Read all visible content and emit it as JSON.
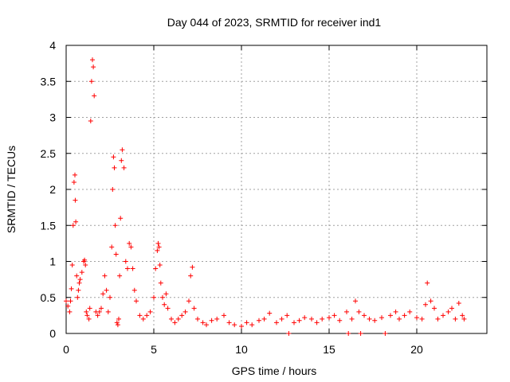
{
  "chart_data": {
    "type": "scatter",
    "title": "Day 044 of 2023, SRMTID for receiver ind1",
    "xlabel": "GPS time / hours",
    "ylabel": "SRMTID / TECUs",
    "xlim": [
      0,
      24
    ],
    "ylim": [
      0,
      4
    ],
    "xticks": [
      0,
      5,
      10,
      15,
      20
    ],
    "xtick_labels": [
      "0",
      "5",
      "10",
      "15",
      "20"
    ],
    "yticks": [
      0,
      0.5,
      1,
      1.5,
      2,
      2.5,
      3,
      3.5,
      4
    ],
    "ytick_labels": [
      "0",
      "0.5",
      "1",
      "1.5",
      "2",
      "2.5",
      "3",
      "3.5",
      "4"
    ],
    "grid": true,
    "marker": "+",
    "series": [
      {
        "name": "SRMTID",
        "color": "#ff0000",
        "x": [
          0.0,
          0.1,
          0.2,
          0.25,
          0.3,
          0.35,
          0.4,
          0.45,
          0.5,
          0.52,
          0.55,
          0.6,
          0.65,
          0.7,
          0.75,
          0.8,
          0.9,
          1.0,
          1.05,
          1.1,
          1.15,
          1.2,
          1.3,
          1.35,
          1.4,
          1.45,
          1.5,
          1.55,
          1.6,
          1.7,
          1.8,
          1.9,
          2.0,
          2.1,
          2.2,
          2.3,
          2.4,
          2.5,
          2.6,
          2.65,
          2.7,
          2.75,
          2.8,
          2.85,
          2.9,
          2.95,
          3.0,
          3.05,
          3.1,
          3.15,
          3.2,
          3.3,
          3.4,
          3.5,
          3.6,
          3.7,
          3.8,
          3.9,
          4.0,
          4.2,
          4.4,
          4.6,
          4.8,
          5.0,
          5.1,
          5.2,
          5.25,
          5.3,
          5.35,
          5.4,
          5.5,
          5.6,
          5.7,
          5.8,
          6.0,
          6.2,
          6.4,
          6.6,
          6.8,
          7.0,
          7.1,
          7.2,
          7.3,
          7.5,
          7.8,
          8.0,
          8.3,
          8.6,
          9.0,
          9.3,
          9.6,
          10.0,
          10.3,
          10.6,
          11.0,
          11.3,
          11.6,
          12.0,
          12.3,
          12.6,
          12.7,
          13.0,
          13.3,
          13.6,
          14.0,
          14.3,
          14.6,
          15.0,
          15.3,
          15.6,
          16.0,
          16.1,
          16.3,
          16.5,
          16.7,
          16.8,
          17.0,
          17.3,
          17.6,
          18.0,
          18.2,
          18.5,
          18.8,
          19.0,
          19.3,
          19.6,
          20.0,
          20.3,
          20.5,
          20.6,
          20.8,
          21.0,
          21.2,
          21.5,
          21.8,
          22.0,
          22.2,
          22.4,
          22.6,
          22.7
        ],
        "values": [
          0.45,
          0.38,
          0.3,
          0.45,
          0.62,
          0.95,
          1.5,
          2.1,
          2.2,
          1.85,
          1.55,
          0.8,
          0.5,
          0.6,
          0.7,
          0.75,
          0.85,
          1.0,
          1.02,
          0.95,
          0.3,
          0.25,
          0.2,
          0.35,
          2.95,
          3.5,
          3.8,
          3.7,
          3.3,
          0.3,
          0.25,
          0.3,
          0.35,
          0.55,
          0.8,
          0.6,
          0.3,
          0.5,
          1.2,
          2.0,
          2.45,
          2.3,
          1.5,
          1.1,
          0.15,
          0.12,
          0.2,
          0.8,
          1.6,
          2.4,
          2.55,
          2.3,
          1.0,
          0.9,
          1.25,
          1.2,
          0.9,
          0.6,
          0.45,
          0.25,
          0.2,
          0.25,
          0.3,
          0.5,
          0.9,
          1.15,
          1.25,
          1.2,
          0.95,
          0.7,
          0.5,
          0.4,
          0.55,
          0.35,
          0.2,
          0.15,
          0.2,
          0.25,
          0.3,
          0.45,
          0.8,
          0.92,
          0.35,
          0.2,
          0.15,
          0.12,
          0.18,
          0.2,
          0.25,
          0.15,
          0.12,
          0.1,
          0.15,
          0.12,
          0.18,
          0.2,
          0.28,
          0.15,
          0.2,
          0.25,
          0.0,
          0.15,
          0.18,
          0.22,
          0.2,
          0.15,
          0.2,
          0.22,
          0.25,
          0.18,
          0.3,
          0.0,
          0.2,
          0.45,
          0.3,
          0.0,
          0.25,
          0.2,
          0.18,
          0.22,
          0.0,
          0.25,
          0.3,
          0.2,
          0.25,
          0.3,
          0.22,
          0.2,
          0.4,
          0.7,
          0.45,
          0.35,
          0.2,
          0.25,
          0.3,
          0.35,
          0.2,
          0.42,
          0.25,
          0.2
        ]
      }
    ]
  }
}
